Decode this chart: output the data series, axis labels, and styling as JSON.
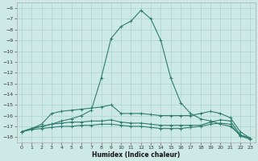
{
  "background_color": "#cce9e5",
  "grid_color": "#aad4ce",
  "line_color": "#2e7d6e",
  "xlabel": "Humidex (Indice chaleur)",
  "xlim": [
    -0.5,
    23.5
  ],
  "ylim": [
    -18.5,
    -5.5
  ],
  "xtick_labels": [
    "0",
    "1",
    "2",
    "3",
    "4",
    "5",
    "6",
    "7",
    "8",
    "9",
    "10",
    "11",
    "12",
    "13",
    "14",
    "15",
    "16",
    "17",
    "18",
    "19",
    "20",
    "21",
    "22",
    "23"
  ],
  "xticks": [
    0,
    1,
    2,
    3,
    4,
    5,
    6,
    7,
    8,
    9,
    10,
    11,
    12,
    13,
    14,
    15,
    16,
    17,
    18,
    19,
    20,
    21,
    22,
    23
  ],
  "yticks": [
    -6,
    -7,
    -8,
    -9,
    -10,
    -11,
    -12,
    -13,
    -14,
    -15,
    -16,
    -17,
    -18
  ],
  "series": [
    {
      "x": [
        0,
        1,
        2,
        3,
        4,
        5,
        6,
        7,
        8,
        9,
        10,
        11,
        12,
        13,
        14,
        15,
        16,
        17,
        18,
        19,
        20,
        21,
        22,
        23
      ],
      "y": [
        -17.5,
        -17.2,
        -17.0,
        -16.8,
        -16.5,
        -16.3,
        -16.0,
        -15.5,
        -12.5,
        -8.8,
        -7.7,
        -7.2,
        -6.2,
        -7.0,
        -9.0,
        -12.5,
        -14.8,
        -15.8,
        -16.3,
        -16.5,
        -16.8,
        -17.0,
        -17.8,
        -18.1
      ]
    },
    {
      "x": [
        0,
        1,
        2,
        3,
        4,
        5,
        6,
        7,
        8,
        9,
        10,
        11,
        12,
        13,
        14,
        15,
        16,
        17,
        18,
        19,
        20,
        21,
        22,
        23
      ],
      "y": [
        -17.5,
        -17.2,
        -16.8,
        -15.8,
        -15.6,
        -15.5,
        -15.4,
        -15.3,
        -15.2,
        -15.0,
        -15.8,
        -15.8,
        -15.8,
        -15.9,
        -16.0,
        -16.0,
        -16.0,
        -16.0,
        -15.8,
        -15.6,
        -15.8,
        -16.2,
        -17.5,
        -18.1
      ]
    },
    {
      "x": [
        0,
        1,
        2,
        3,
        4,
        5,
        6,
        7,
        8,
        9,
        10,
        11,
        12,
        13,
        14,
        15,
        16,
        17,
        18,
        19,
        20,
        21,
        22,
        23
      ],
      "y": [
        -17.5,
        -17.2,
        -17.0,
        -16.8,
        -16.7,
        -16.6,
        -16.6,
        -16.5,
        -16.5,
        -16.4,
        -16.6,
        -16.7,
        -16.7,
        -16.8,
        -16.9,
        -16.9,
        -16.9,
        -16.9,
        -16.9,
        -16.6,
        -16.4,
        -16.5,
        -17.8,
        -18.1
      ]
    },
    {
      "x": [
        0,
        1,
        2,
        3,
        4,
        5,
        6,
        7,
        8,
        9,
        10,
        11,
        12,
        13,
        14,
        15,
        16,
        17,
        18,
        19,
        20,
        21,
        22,
        23
      ],
      "y": [
        -17.5,
        -17.3,
        -17.2,
        -17.1,
        -17.0,
        -17.0,
        -16.9,
        -16.9,
        -16.8,
        -16.8,
        -16.9,
        -17.0,
        -17.0,
        -17.1,
        -17.2,
        -17.2,
        -17.2,
        -17.1,
        -17.0,
        -16.8,
        -16.7,
        -16.8,
        -17.9,
        -18.2
      ]
    }
  ]
}
